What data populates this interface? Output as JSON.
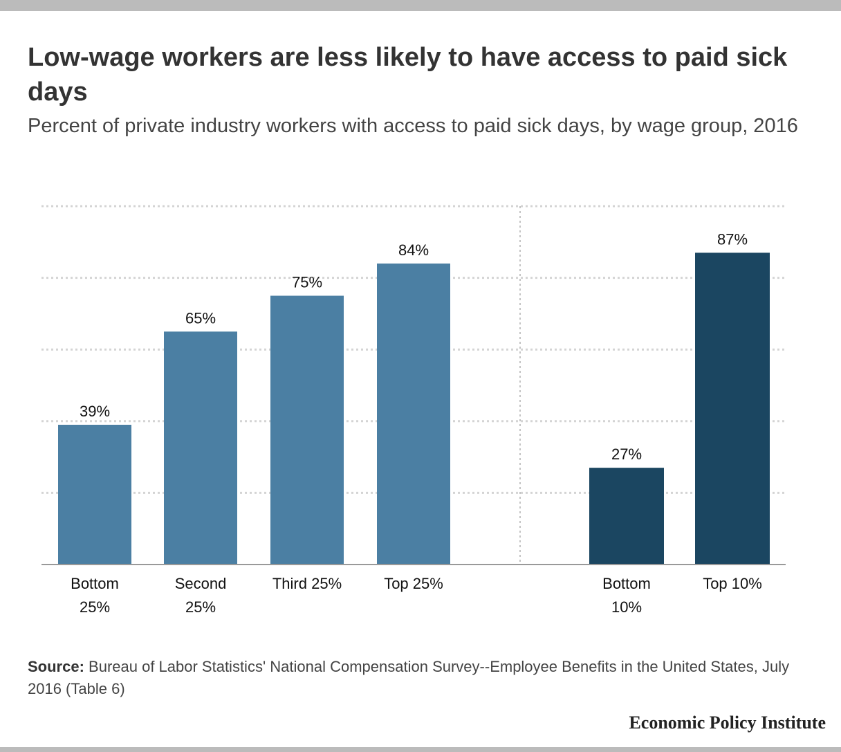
{
  "header": {
    "title": "Low-wage workers are less likely to have access to paid sick days",
    "subtitle": "Percent of private industry workers with access to paid sick days, by wage group, 2016"
  },
  "chart_data": {
    "type": "bar",
    "title": "Low-wage workers are less likely to have access to paid sick days",
    "subtitle": "Percent of private industry workers with access to paid sick days, by wage group, 2016",
    "ylim": [
      0,
      100
    ],
    "grid": true,
    "groups": [
      {
        "name": "quartiles",
        "color": "#4b7fa3",
        "categories": [
          [
            "Bottom",
            "25%"
          ],
          [
            "Second",
            "25%"
          ],
          [
            "Third 25%"
          ],
          [
            "Top 25%"
          ]
        ],
        "values": [
          39,
          65,
          75,
          84
        ],
        "labels": [
          "39%",
          "65%",
          "75%",
          "84%"
        ]
      },
      {
        "name": "deciles",
        "color": "#1b4661",
        "categories": [
          [
            "Bottom",
            "10%"
          ],
          [
            "Top 10%"
          ]
        ],
        "values": [
          27,
          87
        ],
        "labels": [
          "27%",
          "87%"
        ]
      }
    ]
  },
  "footer": {
    "source_label": "Source:",
    "source_text": " Bureau of Labor Statistics' National Compensation Survey--Employee Benefits in the United States, July 2016 (Table 6)",
    "brand": "Economic Policy Institute"
  },
  "colors": {
    "bars_primary": "#4b7fa3",
    "bars_secondary": "#1b4661",
    "gridline": "#d4d4d4",
    "frame_bars": "#bbbbbb"
  }
}
